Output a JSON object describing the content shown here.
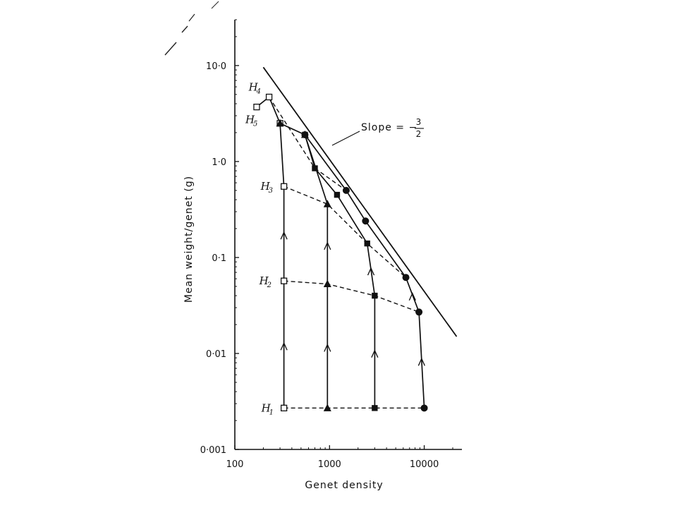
{
  "chart_data": {
    "type": "line",
    "xlabel": "Genet density",
    "ylabel": "Mean weight/genet (g)",
    "xscale": "log",
    "yscale": "log",
    "xlim": [
      100,
      25000
    ],
    "ylim": [
      0.001,
      30
    ],
    "x_ticks": [
      {
        "value": 100,
        "label": "100"
      },
      {
        "value": 1000,
        "label": "1000"
      },
      {
        "value": 10000,
        "label": "10000"
      }
    ],
    "y_ticks": [
      {
        "value": 0.001,
        "label": "0·001"
      },
      {
        "value": 0.01,
        "label": "0·01"
      },
      {
        "value": 0.1,
        "label": "0·1"
      },
      {
        "value": 1,
        "label": "1·0"
      },
      {
        "value": 10,
        "label": "10·0"
      }
    ],
    "series": [
      {
        "marker": "open-square",
        "points": [
          [
            330,
            0.0027
          ],
          [
            330,
            0.057
          ],
          [
            330,
            0.55
          ],
          [
            300,
            2.5
          ],
          [
            230,
            4.7
          ],
          [
            170,
            3.7
          ]
        ]
      },
      {
        "marker": "triangle",
        "points": [
          [
            950,
            0.0027
          ],
          [
            950,
            0.053
          ],
          [
            950,
            0.36
          ],
          [
            550,
            1.9
          ],
          [
            300,
            2.5
          ]
        ]
      },
      {
        "marker": "square",
        "points": [
          [
            3000,
            0.0027
          ],
          [
            3000,
            0.04
          ],
          [
            2500,
            0.14
          ],
          [
            1200,
            0.45
          ],
          [
            700,
            0.85
          ],
          [
            550,
            1.9
          ]
        ]
      },
      {
        "marker": "circle",
        "points": [
          [
            10000,
            0.0027
          ],
          [
            8800,
            0.027
          ],
          [
            6400,
            0.062
          ],
          [
            2400,
            0.24
          ],
          [
            1500,
            0.5
          ],
          [
            550,
            1.9
          ]
        ]
      }
    ],
    "harvests": [
      {
        "letter": "H",
        "sub": "1",
        "points": [
          [
            330,
            0.0027
          ],
          [
            950,
            0.0027
          ],
          [
            3000,
            0.0027
          ],
          [
            10000,
            0.0027
          ]
        ]
      },
      {
        "letter": "H",
        "sub": "2",
        "points": [
          [
            330,
            0.057
          ],
          [
            950,
            0.053
          ],
          [
            3000,
            0.04
          ],
          [
            8800,
            0.027
          ]
        ]
      },
      {
        "letter": "H",
        "sub": "3",
        "points": [
          [
            330,
            0.55
          ],
          [
            950,
            0.36
          ],
          [
            2500,
            0.14
          ],
          [
            6400,
            0.062
          ]
        ]
      },
      {
        "letter": "H",
        "sub": "4",
        "points": [
          [
            230,
            4.7
          ],
          [
            700,
            0.85
          ],
          [
            1500,
            0.5
          ]
        ]
      },
      {
        "letter": "H",
        "sub": "5",
        "points": [
          [
            170,
            3.7
          ]
        ]
      }
    ],
    "thinning_line": {
      "label": "Slope = −",
      "frac_num": "3",
      "frac_den": "2",
      "points": [
        [
          200,
          9.6
        ],
        [
          22000,
          0.015
        ]
      ]
    },
    "annotations": {
      "slope_label": "Slope = −",
      "frac_num": "3",
      "frac_den": "2"
    }
  }
}
